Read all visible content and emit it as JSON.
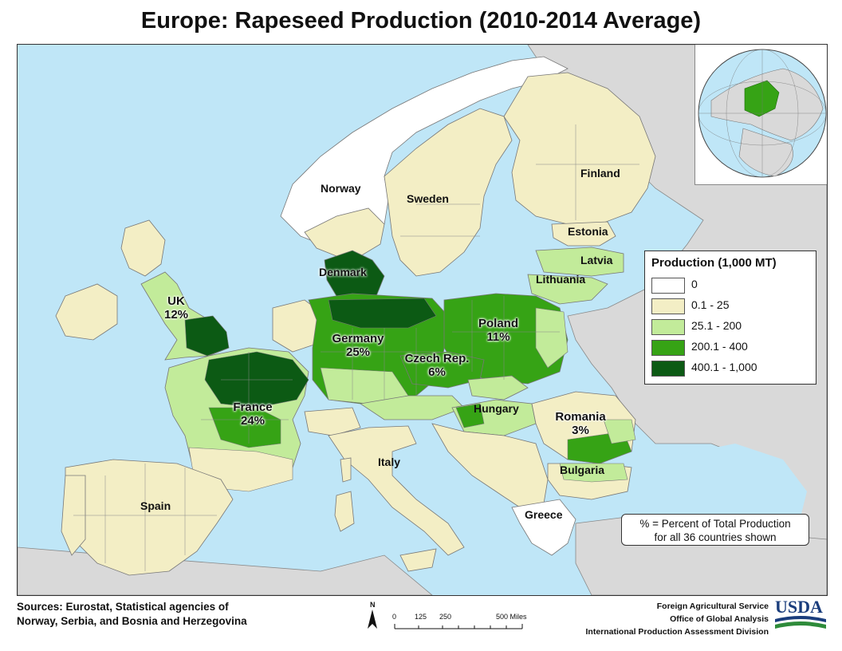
{
  "title": "Europe: Rapeseed Production (2010-2014 Average)",
  "legend": {
    "title": "Production (1,000 MT)",
    "classes": [
      {
        "label": "0",
        "color": "#ffffff"
      },
      {
        "label": "0.1 - 25",
        "color": "#f3eec5"
      },
      {
        "label": "25.1 - 200",
        "color": "#c2eb9a"
      },
      {
        "label": "200.1 - 400",
        "color": "#36a315"
      },
      {
        "label": "400.1 - 1,000",
        "color": "#0c5a14"
      }
    ]
  },
  "labels": {
    "norway": "Norway",
    "sweden": "Sweden",
    "finland": "Finland",
    "estonia": "Estonia",
    "latvia": "Latvia",
    "lithuania": "Lithuania",
    "denmark": "Denmark",
    "italy": "Italy",
    "spain": "Spain",
    "bulgaria": "Bulgaria",
    "greece": "Greece",
    "hungary": "Hungary"
  },
  "share_labels": {
    "uk": {
      "name": "UK",
      "pct": "12%"
    },
    "germany": {
      "name": "Germany",
      "pct": "25%"
    },
    "france": {
      "name": "France",
      "pct": "24%"
    },
    "poland": {
      "name": "Poland",
      "pct": "11%"
    },
    "czech": {
      "name": "Czech Rep.",
      "pct": "6%"
    },
    "romania": {
      "name": "Romania",
      "pct": "3%"
    }
  },
  "note": {
    "line1": "% = Percent of Total Production",
    "line2": "for all 36 countries shown"
  },
  "sources": {
    "line1": "Sources: Eurostat, Statistical agencies of",
    "line2": "Norway, Serbia, and Bosnia and Herzegovina"
  },
  "scale": {
    "north": "N",
    "ticks": [
      "0",
      "125",
      "250",
      "500 Miles"
    ]
  },
  "agency": {
    "line1": "Foreign Agricultural Service",
    "line2": "Office of Global Analysis",
    "line3": "International Production Assessment Division"
  },
  "logo": {
    "text": "USDA",
    "color": "#1a3d7c",
    "accent": "#2e8b3a"
  },
  "colors": {
    "sea": "#bfe6f7",
    "non_covered_land": "#d9d9d9",
    "borders": "#777777"
  }
}
